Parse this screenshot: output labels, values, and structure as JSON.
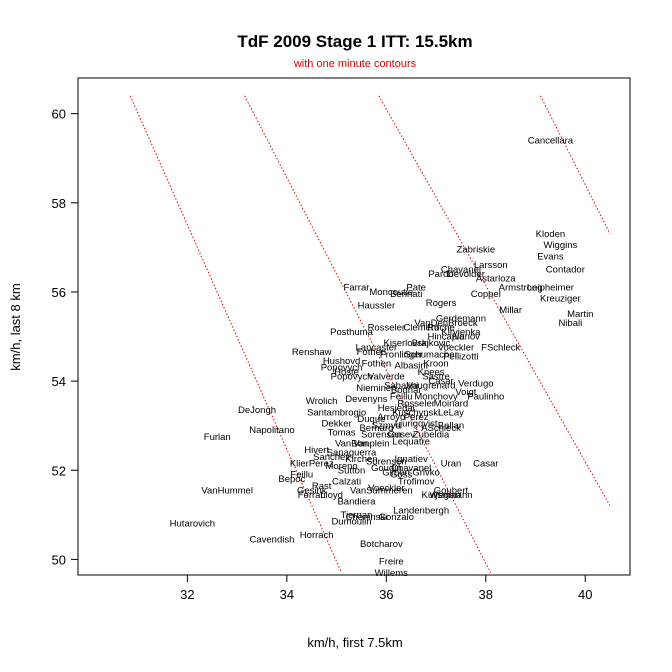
{
  "colors": {
    "contour": "#e00000",
    "axis": "#000000",
    "background": "#ffffff"
  },
  "chart_data": {
    "type": "scatter",
    "title": "TdF 2009 Stage 1 ITT: 15.5km",
    "subtitle": "with one minute contours",
    "xlabel": "km/h, first 7.5km",
    "ylabel": "km/h, last 8 km",
    "xlim": [
      29.8,
      40.9
    ],
    "ylim": [
      49.65,
      60.8
    ],
    "xticks": [
      32,
      34,
      36,
      38,
      40
    ],
    "yticks": [
      50,
      52,
      54,
      56,
      58,
      60
    ],
    "contour_style": "dotted",
    "contours": [
      {
        "x": [
          30.85,
          35.1
        ],
        "y": [
          60.4,
          49.7
        ]
      },
      {
        "x": [
          33.15,
          38.1
        ],
        "y": [
          60.4,
          49.7
        ]
      },
      {
        "x": [
          35.85,
          40.5
        ],
        "y": [
          60.4,
          51.2
        ]
      },
      {
        "x": [
          39.1,
          40.5
        ],
        "y": [
          60.4,
          57.3
        ]
      }
    ],
    "points": [
      {
        "label": "Cancellara",
        "x": 39.3,
        "y": 59.4
      },
      {
        "label": "Kloden",
        "x": 39.3,
        "y": 57.3
      },
      {
        "label": "Wiggins",
        "x": 39.5,
        "y": 57.05
      },
      {
        "label": "Evans",
        "x": 39.3,
        "y": 56.8
      },
      {
        "label": "Zabriskie",
        "x": 37.8,
        "y": 56.95
      },
      {
        "label": "Contador",
        "x": 39.6,
        "y": 56.5
      },
      {
        "label": "Larsson",
        "x": 38.1,
        "y": 56.6
      },
      {
        "label": "Chavanel",
        "x": 37.5,
        "y": 56.5
      },
      {
        "label": "Pardo",
        "x": 37.1,
        "y": 56.4
      },
      {
        "label": "Devolder",
        "x": 37.6,
        "y": 56.4
      },
      {
        "label": "Astarloza",
        "x": 38.2,
        "y": 56.3
      },
      {
        "label": "Armstrong",
        "x": 38.7,
        "y": 56.1
      },
      {
        "label": "Leipheimer",
        "x": 39.3,
        "y": 56.1
      },
      {
        "label": "Farrar",
        "x": 35.4,
        "y": 56.1
      },
      {
        "label": "Moncoutie",
        "x": 36.1,
        "y": 56.0
      },
      {
        "label": "Pate",
        "x": 36.6,
        "y": 56.1
      },
      {
        "label": "Bennati",
        "x": 36.4,
        "y": 55.95
      },
      {
        "label": "Coppel",
        "x": 38.0,
        "y": 55.95
      },
      {
        "label": "Kreuziger",
        "x": 39.5,
        "y": 55.85
      },
      {
        "label": "Haussler",
        "x": 35.8,
        "y": 55.7
      },
      {
        "label": "Rogers",
        "x": 37.1,
        "y": 55.75
      },
      {
        "label": "Millar",
        "x": 38.5,
        "y": 55.6
      },
      {
        "label": "Martin",
        "x": 39.9,
        "y": 55.5
      },
      {
        "label": "Nibali",
        "x": 39.7,
        "y": 55.3
      },
      {
        "label": "Gerdemann",
        "x": 37.5,
        "y": 55.4
      },
      {
        "label": "VanDenBroeck",
        "x": 37.2,
        "y": 55.3
      },
      {
        "label": "Rosseler",
        "x": 36.0,
        "y": 55.2
      },
      {
        "label": "Clement",
        "x": 36.7,
        "y": 55.2
      },
      {
        "label": "Roche",
        "x": 37.1,
        "y": 55.2
      },
      {
        "label": "Kiryienka",
        "x": 37.5,
        "y": 55.1
      },
      {
        "label": "Posthuma",
        "x": 35.3,
        "y": 55.1
      },
      {
        "label": "Hincapie",
        "x": 37.2,
        "y": 55.0
      },
      {
        "label": "Ivanov",
        "x": 37.6,
        "y": 55.0
      },
      {
        "label": "Kiserlovski",
        "x": 36.4,
        "y": 54.85
      },
      {
        "label": "Brajkovic",
        "x": 36.9,
        "y": 54.85
      },
      {
        "label": "Lancaster",
        "x": 35.8,
        "y": 54.75
      },
      {
        "label": "Voeckler",
        "x": 37.4,
        "y": 54.75
      },
      {
        "label": "FSchleck",
        "x": 38.3,
        "y": 54.75
      },
      {
        "label": "Renshaw",
        "x": 34.5,
        "y": 54.65
      },
      {
        "label": "Fothen",
        "x": 35.7,
        "y": 54.65
      },
      {
        "label": "Fronlinger",
        "x": 36.3,
        "y": 54.6
      },
      {
        "label": "Schumacher",
        "x": 36.9,
        "y": 54.6
      },
      {
        "label": "Pellizotti",
        "x": 37.5,
        "y": 54.55
      },
      {
        "label": "Hushovd",
        "x": 35.1,
        "y": 54.45
      },
      {
        "label": "Fothen",
        "x": 35.8,
        "y": 54.4
      },
      {
        "label": "Albasini",
        "x": 36.5,
        "y": 54.35
      },
      {
        "label": "Kroon",
        "x": 37.0,
        "y": 54.4
      },
      {
        "label": "Popovych",
        "x": 35.1,
        "y": 54.3
      },
      {
        "label": "Hoste",
        "x": 35.2,
        "y": 54.2
      },
      {
        "label": "Popovych",
        "x": 35.3,
        "y": 54.1
      },
      {
        "label": "Valverde",
        "x": 36.0,
        "y": 54.1
      },
      {
        "label": "Knees",
        "x": 36.9,
        "y": 54.2
      },
      {
        "label": "Sastre",
        "x": 37.0,
        "y": 54.1
      },
      {
        "label": "Casar",
        "x": 37.1,
        "y": 54.0
      },
      {
        "label": "Verdugo",
        "x": 37.8,
        "y": 53.95
      },
      {
        "label": "Sabatini",
        "x": 36.3,
        "y": 53.9
      },
      {
        "label": "Vaugrenard",
        "x": 36.9,
        "y": 53.9
      },
      {
        "label": "Nieminen",
        "x": 35.8,
        "y": 53.85
      },
      {
        "label": "Bodnar",
        "x": 36.4,
        "y": 53.8
      },
      {
        "label": "Voigt",
        "x": 37.6,
        "y": 53.75
      },
      {
        "label": "Paulinho",
        "x": 38.0,
        "y": 53.65
      },
      {
        "label": "Devenyns",
        "x": 35.6,
        "y": 53.6
      },
      {
        "label": "Feillu",
        "x": 36.3,
        "y": 53.65
      },
      {
        "label": "Monchovy",
        "x": 37.0,
        "y": 53.65
      },
      {
        "label": "Rosseler",
        "x": 36.6,
        "y": 53.5
      },
      {
        "label": "Moinard",
        "x": 37.3,
        "y": 53.5
      },
      {
        "label": "Wrolich",
        "x": 34.7,
        "y": 53.55
      },
      {
        "label": "Hesjedal",
        "x": 36.2,
        "y": 53.4
      },
      {
        "label": "Kuschynski",
        "x": 36.6,
        "y": 53.3
      },
      {
        "label": "LeLay",
        "x": 37.3,
        "y": 53.3
      },
      {
        "label": "Arroyo",
        "x": 36.1,
        "y": 53.2
      },
      {
        "label": "Perez",
        "x": 36.6,
        "y": 53.2
      },
      {
        "label": "DeJongh",
        "x": 33.4,
        "y": 53.35
      },
      {
        "label": "Santambrogio",
        "x": 35.0,
        "y": 53.3
      },
      {
        "label": "Duque",
        "x": 35.7,
        "y": 53.15
      },
      {
        "label": "Szmyd",
        "x": 36.0,
        "y": 53.0
      },
      {
        "label": "Ljungqvist",
        "x": 36.6,
        "y": 53.05
      },
      {
        "label": "Ballan",
        "x": 37.3,
        "y": 53.0
      },
      {
        "label": "ASchleck",
        "x": 37.1,
        "y": 52.95
      },
      {
        "label": "Dekker",
        "x": 35.0,
        "y": 53.05
      },
      {
        "label": "Bernard",
        "x": 35.8,
        "y": 52.95
      },
      {
        "label": "Napolitano",
        "x": 33.7,
        "y": 52.9
      },
      {
        "label": "Tomas",
        "x": 35.1,
        "y": 52.85
      },
      {
        "label": "Sorensen",
        "x": 35.9,
        "y": 52.8
      },
      {
        "label": "Gusev",
        "x": 36.3,
        "y": 52.8
      },
      {
        "label": "Zubeldia",
        "x": 36.9,
        "y": 52.8
      },
      {
        "label": "Furlan",
        "x": 32.6,
        "y": 52.75
      },
      {
        "label": "VanBon",
        "x": 35.3,
        "y": 52.6
      },
      {
        "label": "Vanplein",
        "x": 35.7,
        "y": 52.6
      },
      {
        "label": "Lequatre",
        "x": 36.5,
        "y": 52.65
      },
      {
        "label": "Hivert",
        "x": 34.6,
        "y": 52.45
      },
      {
        "label": "Sapaguerra",
        "x": 35.3,
        "y": 52.4
      },
      {
        "label": "Sanchez",
        "x": 34.9,
        "y": 52.3
      },
      {
        "label": "Kirchen",
        "x": 35.5,
        "y": 52.25
      },
      {
        "label": "Sorensen",
        "x": 36.0,
        "y": 52.2
      },
      {
        "label": "Ignatiev",
        "x": 36.5,
        "y": 52.25
      },
      {
        "label": "Uran",
        "x": 37.3,
        "y": 52.15
      },
      {
        "label": "Casar",
        "x": 38.0,
        "y": 52.15
      },
      {
        "label": "KlierPerez",
        "x": 34.5,
        "y": 52.15
      },
      {
        "label": "Moreno",
        "x": 35.1,
        "y": 52.1
      },
      {
        "label": "Goudin",
        "x": 36.0,
        "y": 52.05
      },
      {
        "label": "Chavanel",
        "x": 36.5,
        "y": 52.05
      },
      {
        "label": "Sutton",
        "x": 35.3,
        "y": 52.0
      },
      {
        "label": "Gilbert",
        "x": 36.2,
        "y": 51.95
      },
      {
        "label": "Goss",
        "x": 36.3,
        "y": 51.9
      },
      {
        "label": "Grivko",
        "x": 36.8,
        "y": 51.95
      },
      {
        "label": "Feillu",
        "x": 34.3,
        "y": 51.9
      },
      {
        "label": "Bepoc",
        "x": 34.1,
        "y": 51.8
      },
      {
        "label": "Calzati",
        "x": 35.2,
        "y": 51.75
      },
      {
        "label": "Trofimov",
        "x": 36.6,
        "y": 51.75
      },
      {
        "label": "Rast",
        "x": 34.7,
        "y": 51.65
      },
      {
        "label": "VanHummel",
        "x": 32.8,
        "y": 51.55
      },
      {
        "label": "Gesink",
        "x": 34.5,
        "y": 51.55
      },
      {
        "label": "VanSummeren",
        "x": 35.9,
        "y": 51.55
      },
      {
        "label": "Voeckler",
        "x": 36.0,
        "y": 51.6
      },
      {
        "label": "Goubert",
        "x": 37.3,
        "y": 51.55
      },
      {
        "label": "Kuijsman",
        "x": 37.1,
        "y": 51.45
      },
      {
        "label": "Wegmann",
        "x": 37.3,
        "y": 51.45
      },
      {
        "label": "Ferrari",
        "x": 34.5,
        "y": 51.45
      },
      {
        "label": "Lloyd",
        "x": 34.9,
        "y": 51.45
      },
      {
        "label": "Bandiera",
        "x": 35.4,
        "y": 51.3
      },
      {
        "label": "Landenbergh",
        "x": 36.7,
        "y": 51.1
      },
      {
        "label": "Tiernan",
        "x": 35.4,
        "y": 51.0
      },
      {
        "label": "Cheninski",
        "x": 35.6,
        "y": 50.95
      },
      {
        "label": "Gonzalo",
        "x": 36.2,
        "y": 50.95
      },
      {
        "label": "Dumoulin",
        "x": 35.3,
        "y": 50.85
      },
      {
        "label": "Hutarovich",
        "x": 32.1,
        "y": 50.8
      },
      {
        "label": "Horrach",
        "x": 34.6,
        "y": 50.55
      },
      {
        "label": "Cavendish",
        "x": 33.7,
        "y": 50.45
      },
      {
        "label": "Botcharov",
        "x": 35.9,
        "y": 50.35
      },
      {
        "label": "Freire",
        "x": 36.1,
        "y": 49.95
      },
      {
        "label": "Willems",
        "x": 36.1,
        "y": 49.7
      }
    ]
  }
}
